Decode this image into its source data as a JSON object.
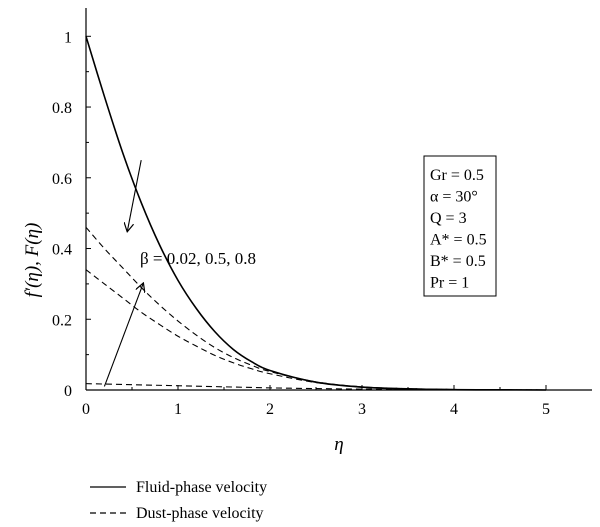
{
  "chart_data": {
    "type": "line",
    "xlabel": "η",
    "ylabel": "f′(η), F(η)",
    "xlim": [
      0,
      5.5
    ],
    "ylim": [
      0,
      1.08
    ],
    "x_ticks": [
      "0",
      "1",
      "2",
      "3",
      "4",
      "5"
    ],
    "y_ticks": [
      "0",
      "0.2",
      "0.4",
      "0.6",
      "0.8",
      "1"
    ],
    "grid": false,
    "series": [
      {
        "name": "Fluid-phase velocity",
        "style": "solid",
        "x": [
          0,
          0.2,
          0.4,
          0.6,
          0.8,
          1.0,
          1.2,
          1.4,
          1.6,
          1.8,
          2.0,
          2.5,
          3.0,
          3.5,
          4.0,
          4.5,
          5.0
        ],
        "y": [
          1.0,
          0.83,
          0.67,
          0.53,
          0.41,
          0.31,
          0.23,
          0.165,
          0.115,
          0.08,
          0.055,
          0.022,
          0.008,
          0.003,
          0.001,
          0.0005,
          0.0
        ]
      },
      {
        "name": "Dust-phase velocity",
        "style": "dashed",
        "x": [
          0,
          0.2,
          0.4,
          0.6,
          0.8,
          1.0,
          1.2,
          1.4,
          1.6,
          1.8,
          2.0,
          2.5,
          3.0,
          3.5,
          4.0,
          4.5,
          5.0
        ],
        "y": [
          0.46,
          0.4,
          0.345,
          0.29,
          0.24,
          0.195,
          0.155,
          0.12,
          0.092,
          0.07,
          0.052,
          0.023,
          0.009,
          0.004,
          0.0015,
          0.0005,
          0.0
        ]
      },
      {
        "name": "Dust-phase velocity",
        "style": "dashed",
        "x": [
          0,
          0.2,
          0.4,
          0.6,
          0.8,
          1.0,
          1.2,
          1.4,
          1.6,
          1.8,
          2.0,
          2.5,
          3.0,
          3.5,
          4.0,
          4.5,
          5.0
        ],
        "y": [
          0.34,
          0.3,
          0.26,
          0.22,
          0.185,
          0.152,
          0.124,
          0.098,
          0.077,
          0.06,
          0.046,
          0.021,
          0.009,
          0.004,
          0.0015,
          0.0005,
          0.0
        ]
      },
      {
        "name": "Dust-phase velocity",
        "style": "dashed",
        "x": [
          0,
          0.5,
          1.0,
          1.5,
          2.0,
          2.5,
          3.0,
          3.5,
          4.0,
          4.5,
          5.0
        ],
        "y": [
          0.018,
          0.015,
          0.012,
          0.009,
          0.006,
          0.004,
          0.0025,
          0.0015,
          0.0008,
          0.0003,
          0.0
        ]
      }
    ],
    "parameters": [
      "Gr = 0.5",
      "α = 30°",
      "Q = 3",
      "A* = 0.5",
      "B* = 0.5",
      "Pr = 1"
    ],
    "annotation": {
      "text": "β = 0.02, 0.5, 0.8",
      "arrows": [
        {
          "from": [
            0.6,
            0.65
          ],
          "to": [
            0.45,
            0.45
          ]
        },
        {
          "from": [
            0.2,
            0.01
          ],
          "to": [
            0.62,
            0.3
          ]
        }
      ]
    },
    "legend": {
      "placement": "below",
      "entries": [
        {
          "label": "Fluid-phase velocity",
          "style": "solid"
        },
        {
          "label": "Dust-phase velocity",
          "style": "dashed"
        }
      ]
    }
  }
}
